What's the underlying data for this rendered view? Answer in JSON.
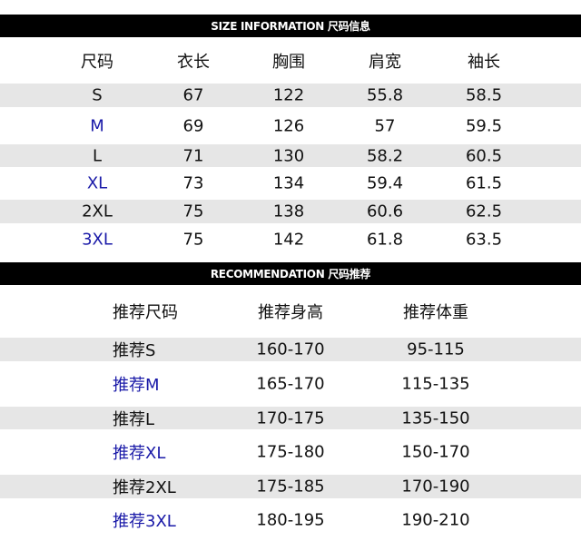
{
  "size_info": {
    "title": "SIZE INFORMATION  尺码信息",
    "headers": [
      "尺码",
      "衣长",
      "胸围",
      "肩宽",
      "袖长"
    ],
    "rows": [
      [
        "S",
        "67",
        "122",
        "55.8",
        "58.5"
      ],
      [
        "M",
        "69",
        "126",
        "57",
        "59.5"
      ],
      [
        "L",
        "71",
        "130",
        "58.2",
        "60.5"
      ],
      [
        "XL",
        "73",
        "134",
        "59.4",
        "61.5"
      ],
      [
        "2XL",
        "75",
        "138",
        "60.6",
        "62.5"
      ],
      [
        "3XL",
        "75",
        "142",
        "61.8",
        "63.5"
      ]
    ]
  },
  "recommendation": {
    "title": "RECOMMENDATION 尺码推荐",
    "headers": [
      "推荐尺码",
      "推荐身高",
      "推荐体重"
    ],
    "rows": [
      [
        "推荐S",
        "160-170",
        "95-115"
      ],
      [
        "推荐M",
        "165-170",
        "115-135"
      ],
      [
        "推荐L",
        "170-175",
        "135-150"
      ],
      [
        "推荐XL",
        "175-180",
        "150-170"
      ],
      [
        "推荐2XL",
        "175-185",
        "170-190"
      ],
      [
        "推荐3XL",
        "180-195",
        "190-210"
      ]
    ]
  },
  "colors": {
    "header_bar": "#000000",
    "stripe": "#e6e6e6",
    "highlight_text": "#1a1aa8"
  }
}
